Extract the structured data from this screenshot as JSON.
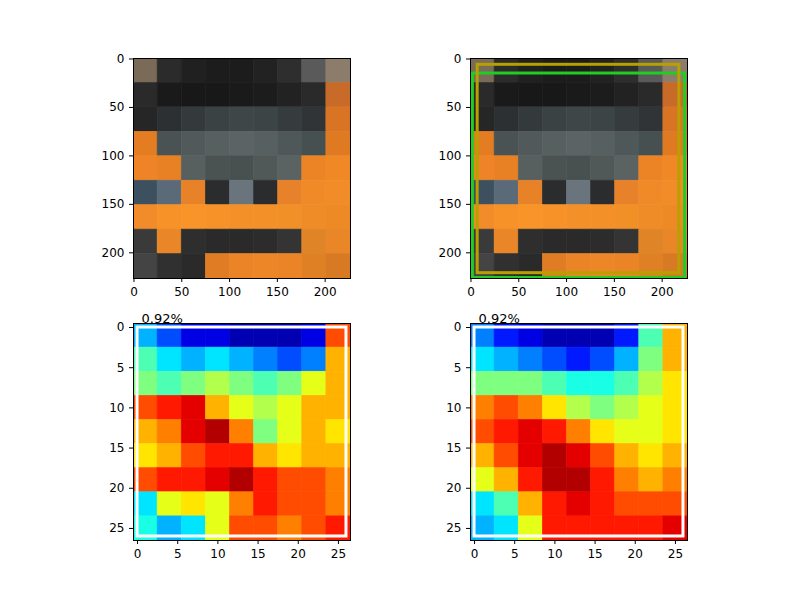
{
  "chart_data": [
    {
      "type": "image",
      "xlim": [
        -0.5,
        226.5
      ],
      "ylim": [
        226.5,
        -0.5
      ],
      "xticks": [
        0,
        50,
        100,
        150,
        200
      ],
      "yticks": [
        0,
        50,
        100,
        150,
        200
      ],
      "pixels": [
        [
          "#7a6a58",
          "#2b2b2b",
          "#202020",
          "#1c1c1c",
          "#1c1c1c",
          "#222222",
          "#2e2e2e",
          "#5a5a5a",
          "#8c7c6c"
        ],
        [
          "#2a2a2a",
          "#1a1a1a",
          "#181818",
          "#181818",
          "#1a1a1a",
          "#1c1c1c",
          "#222222",
          "#2a2a2a",
          "#c86a28"
        ],
        [
          "#262626",
          "#2c3032",
          "#343a3c",
          "#3a4244",
          "#3e4648",
          "#3c4446",
          "#363c3e",
          "#303436",
          "#d87424"
        ],
        [
          "#e47c22",
          "#4a5254",
          "#52595b",
          "#56605f",
          "#5a6464",
          "#566060",
          "#4e5858",
          "#465050",
          "#e07a22"
        ],
        [
          "#ee8426",
          "#e88024",
          "#58605f",
          "#4a5252",
          "#485050",
          "#505858",
          "#5a6262",
          "#ec8426",
          "#f08826"
        ],
        [
          "#3c5060",
          "#5a6a78",
          "#e88228",
          "#2a2c2e",
          "#6a747c",
          "#2a2c2e",
          "#e8822a",
          "#f08a28",
          "#f28c28"
        ],
        [
          "#f28c2a",
          "#f69228",
          "#f89428",
          "#f69228",
          "#f49028",
          "#f49028",
          "#f29028",
          "#f08c28",
          "#ee8a26"
        ],
        [
          "#3a3a3a",
          "#e88628",
          "#2e2e2e",
          "#2a2a2a",
          "#2a2a2a",
          "#2c2c2c",
          "#343434",
          "#e08428",
          "#e88628"
        ],
        [
          "#444444",
          "#303030",
          "#2a2a2a",
          "#e07c24",
          "#ea8426",
          "#ec8626",
          "#ea8426",
          "#e08024",
          "#d87a24"
        ]
      ]
    },
    {
      "type": "image",
      "xlim": [
        -0.5,
        226.5
      ],
      "ylim": [
        226.5,
        -0.5
      ],
      "xticks": [
        0,
        50,
        100,
        150,
        200
      ],
      "yticks": [
        0,
        50,
        100,
        150,
        200
      ],
      "pixels": [
        [
          "#7a6a58",
          "#2b2b2b",
          "#202020",
          "#1c1c1c",
          "#1c1c1c",
          "#222222",
          "#2e2e2e",
          "#5a5a5a",
          "#8c7c6c"
        ],
        [
          "#2a2a2a",
          "#1a1a1a",
          "#181818",
          "#181818",
          "#1a1a1a",
          "#1c1c1c",
          "#222222",
          "#2a2a2a",
          "#c86a28"
        ],
        [
          "#262626",
          "#2c3032",
          "#343a3c",
          "#3a4244",
          "#3e4648",
          "#3c4446",
          "#363c3e",
          "#303436",
          "#d87424"
        ],
        [
          "#e47c22",
          "#4a5254",
          "#52595b",
          "#56605f",
          "#5a6464",
          "#566060",
          "#4e5858",
          "#465050",
          "#e07a22"
        ],
        [
          "#ee8426",
          "#e88024",
          "#58605f",
          "#4a5252",
          "#485050",
          "#505858",
          "#5a6262",
          "#ec8426",
          "#f08826"
        ],
        [
          "#3c5060",
          "#5a6a78",
          "#e88228",
          "#2a2c2e",
          "#6a747c",
          "#2a2c2e",
          "#e8822a",
          "#f08a28",
          "#f28c28"
        ],
        [
          "#f28c2a",
          "#f69228",
          "#f89428",
          "#f69228",
          "#f49028",
          "#f49028",
          "#f29028",
          "#f08c28",
          "#ee8a26"
        ],
        [
          "#3a3a3a",
          "#e88628",
          "#2e2e2e",
          "#2a2a2a",
          "#2a2a2a",
          "#2c2c2c",
          "#343434",
          "#e08428",
          "#e88628"
        ],
        [
          "#444444",
          "#303030",
          "#2a2a2a",
          "#e07c24",
          "#ea8426",
          "#ec8626",
          "#ea8426",
          "#e08024",
          "#d87a24"
        ]
      ],
      "boxes": [
        {
          "color": "#22cc22",
          "x0": 2,
          "y0": 15,
          "x1": 224,
          "y1": 226
        },
        {
          "color": "#b8a000",
          "x0": 7,
          "y0": 6,
          "x1": 218,
          "y1": 221
        }
      ]
    },
    {
      "type": "heatmap",
      "annotation": "0.92%",
      "xlim": [
        -0.5,
        26.5
      ],
      "ylim": [
        26.5,
        -0.5
      ],
      "xticks": [
        0,
        5,
        10,
        15,
        20,
        25
      ],
      "yticks": [
        0,
        5,
        10,
        15,
        20,
        25
      ],
      "value_range": [
        0,
        1
      ],
      "cells": [
        [
          0.3,
          0.2,
          0.1,
          0.1,
          0.05,
          0.05,
          0.05,
          0.1,
          0.8
        ],
        [
          0.45,
          0.35,
          0.3,
          0.35,
          0.3,
          0.25,
          0.2,
          0.25,
          0.7
        ],
        [
          0.5,
          0.45,
          0.5,
          0.55,
          0.5,
          0.45,
          0.5,
          0.6,
          0.7
        ],
        [
          0.8,
          0.85,
          0.9,
          0.7,
          0.6,
          0.55,
          0.6,
          0.7,
          0.7
        ],
        [
          0.7,
          0.75,
          0.9,
          0.95,
          0.75,
          0.5,
          0.6,
          0.7,
          0.65
        ],
        [
          0.65,
          0.7,
          0.8,
          0.85,
          0.85,
          0.7,
          0.65,
          0.7,
          0.7
        ],
        [
          0.8,
          0.85,
          0.85,
          0.9,
          0.95,
          0.85,
          0.8,
          0.8,
          0.75
        ],
        [
          0.35,
          0.6,
          0.65,
          0.6,
          0.75,
          0.85,
          0.8,
          0.8,
          0.75
        ],
        [
          0.4,
          0.3,
          0.35,
          0.6,
          0.8,
          0.8,
          0.75,
          0.8,
          0.85
        ]
      ],
      "boxes": [
        {
          "color": "#ffffff",
          "x0": 0,
          "y0": 0,
          "x1": 26,
          "y1": 26
        }
      ]
    },
    {
      "type": "heatmap",
      "annotation": "0.92%",
      "xlim": [
        -0.5,
        26.5
      ],
      "ylim": [
        26.5,
        -0.5
      ],
      "xticks": [
        0,
        5,
        10,
        15,
        20,
        25
      ],
      "yticks": [
        0,
        5,
        10,
        15,
        20,
        25
      ],
      "value_range": [
        0,
        1
      ],
      "cells": [
        [
          0.25,
          0.15,
          0.1,
          0.05,
          0.05,
          0.05,
          0.15,
          0.45,
          0.7
        ],
        [
          0.35,
          0.3,
          0.25,
          0.2,
          0.15,
          0.2,
          0.3,
          0.5,
          0.7
        ],
        [
          0.5,
          0.5,
          0.5,
          0.45,
          0.4,
          0.4,
          0.45,
          0.55,
          0.65
        ],
        [
          0.75,
          0.8,
          0.75,
          0.65,
          0.55,
          0.5,
          0.55,
          0.6,
          0.65
        ],
        [
          0.8,
          0.85,
          0.9,
          0.85,
          0.75,
          0.65,
          0.6,
          0.6,
          0.65
        ],
        [
          0.7,
          0.8,
          0.9,
          0.95,
          0.9,
          0.8,
          0.7,
          0.65,
          0.7
        ],
        [
          0.6,
          0.7,
          0.85,
          0.95,
          0.95,
          0.85,
          0.75,
          0.7,
          0.75
        ],
        [
          0.35,
          0.45,
          0.7,
          0.85,
          0.9,
          0.85,
          0.8,
          0.8,
          0.8
        ],
        [
          0.3,
          0.35,
          0.6,
          0.85,
          0.85,
          0.85,
          0.85,
          0.85,
          0.9
        ]
      ],
      "boxes": [
        {
          "color": "#ffffff",
          "x0": 0,
          "y0": 0,
          "x1": 26,
          "y1": 26
        }
      ]
    }
  ]
}
